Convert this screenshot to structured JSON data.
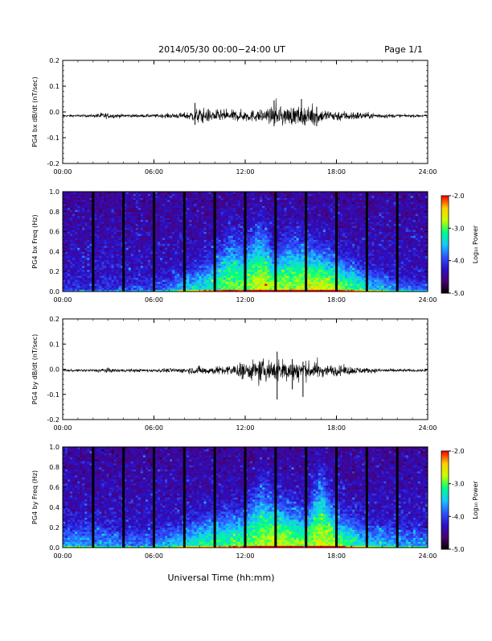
{
  "header": {
    "date_range": "2014/05/30  00:00−24:00 UT",
    "page": "Page 1/1"
  },
  "footer": {
    "xlabel": "Universal Time (hh:mm)"
  },
  "colorbar": {
    "label": "Log₁₀ Power",
    "ticks": [
      "-2.0",
      "-3.0",
      "-4.0",
      "-5.0"
    ],
    "range": [
      -5.0,
      -2.0
    ],
    "colormap": [
      "#000000",
      "#4b006e",
      "#2a10c8",
      "#2e54ff",
      "#18c8ff",
      "#00ff84",
      "#c6ff00",
      "#ffd000",
      "#ff0000"
    ]
  },
  "chart_data": [
    {
      "type": "line",
      "ylabel": "PG4 bx dB/dt (nT/sec)",
      "xlim": [
        "00:00",
        "24:00"
      ],
      "ylim": [
        -0.2,
        0.2
      ],
      "x_ticks": [
        "00:00",
        "06:00",
        "12:00",
        "18:00",
        "24:00"
      ],
      "y_ticks": [
        "0.2",
        "0.1",
        "0.0",
        "-0.1",
        "-0.2"
      ],
      "baseline": -0.015,
      "envelope": {
        "hour": [
          0,
          2,
          2.5,
          4,
          6,
          8,
          9,
          10,
          11,
          12,
          13,
          14,
          15,
          16,
          17,
          18,
          19,
          20,
          22,
          24
        ],
        "amp": [
          0.004,
          0.005,
          0.012,
          0.006,
          0.006,
          0.012,
          0.03,
          0.022,
          0.02,
          0.022,
          0.022,
          0.03,
          0.035,
          0.032,
          0.025,
          0.02,
          0.018,
          0.012,
          0.006,
          0.004
        ]
      },
      "spikes": [
        {
          "hour": 8.7,
          "min": -0.05,
          "max": 0.035
        },
        {
          "hour": 13.9,
          "min": -0.055,
          "max": 0.045
        },
        {
          "hour": 15.7,
          "min": -0.04,
          "max": 0.05
        },
        {
          "hour": 16.7,
          "min": -0.055,
          "max": 0.02
        }
      ]
    },
    {
      "type": "heatmap",
      "ylabel": "PG4 bx Freq (Hz)",
      "xlim": [
        "00:00",
        "24:00"
      ],
      "ylim": [
        0.0,
        1.0
      ],
      "x_ticks": [
        "00:00",
        "06:00",
        "12:00",
        "18:00",
        "24:00"
      ],
      "y_ticks": [
        "1.0",
        "0.8",
        "0.6",
        "0.4",
        "0.2",
        "0.0"
      ],
      "data_gaps_hour": [
        2,
        4,
        6,
        8,
        10,
        12,
        14,
        16,
        18,
        20,
        22
      ],
      "activity": {
        "hour": [
          0,
          6,
          8,
          9,
          10,
          11,
          12,
          13,
          14,
          15,
          16,
          17,
          18,
          20,
          22,
          24
        ],
        "strength": [
          0.1,
          0.15,
          0.45,
          0.55,
          0.65,
          0.8,
          0.8,
          0.95,
          0.9,
          0.8,
          0.9,
          0.95,
          0.85,
          0.55,
          0.3,
          0.2
        ],
        "height_hz": [
          0.08,
          0.1,
          0.15,
          0.2,
          0.3,
          0.45,
          0.4,
          0.55,
          0.3,
          0.45,
          0.4,
          0.35,
          0.3,
          0.2,
          0.12,
          0.08
        ]
      }
    },
    {
      "type": "line",
      "ylabel": "PG4 by dB/dt (nT/sec)",
      "xlim": [
        "00:00",
        "24:00"
      ],
      "ylim": [
        -0.2,
        0.2
      ],
      "x_ticks": [
        "00:00",
        "06:00",
        "12:00",
        "18:00",
        "24:00"
      ],
      "y_ticks": [
        "0.2",
        "0.1",
        "0.0",
        "-0.1",
        "-0.2"
      ],
      "baseline": -0.005,
      "envelope": {
        "hour": [
          0,
          2,
          2.5,
          4,
          6,
          8,
          9,
          10,
          11,
          12,
          13,
          14,
          15,
          16,
          17,
          18,
          19,
          20,
          22,
          24
        ],
        "amp": [
          0.004,
          0.005,
          0.01,
          0.006,
          0.006,
          0.01,
          0.016,
          0.015,
          0.02,
          0.03,
          0.04,
          0.045,
          0.042,
          0.035,
          0.025,
          0.02,
          0.015,
          0.01,
          0.006,
          0.004
        ]
      },
      "spikes": [
        {
          "hour": 11.8,
          "min": -0.04,
          "max": 0.02
        },
        {
          "hour": 14.1,
          "min": -0.12,
          "max": 0.07
        },
        {
          "hour": 15.1,
          "min": -0.08,
          "max": 0.04
        },
        {
          "hour": 15.8,
          "min": -0.11,
          "max": 0.03
        }
      ]
    },
    {
      "type": "heatmap",
      "ylabel": "PG4 by Freq (Hz)",
      "xlim": [
        "00:00",
        "24:00"
      ],
      "ylim": [
        0.0,
        1.0
      ],
      "x_ticks": [
        "00:00",
        "06:00",
        "12:00",
        "18:00",
        "24:00"
      ],
      "y_ticks": [
        "1.0",
        "0.8",
        "0.6",
        "0.4",
        "0.2",
        "0.0"
      ],
      "data_gaps_hour": [
        2,
        4,
        6,
        8,
        10,
        12,
        14,
        16,
        18,
        20,
        22
      ],
      "activity": {
        "hour": [
          0,
          2,
          4,
          6,
          8,
          9,
          10,
          11,
          12,
          13,
          14,
          15,
          16,
          17,
          18,
          20,
          22,
          24
        ],
        "strength": [
          0.35,
          0.35,
          0.3,
          0.3,
          0.5,
          0.6,
          0.65,
          0.7,
          0.75,
          0.85,
          0.95,
          0.85,
          0.8,
          0.95,
          0.8,
          0.5,
          0.35,
          0.3
        ],
        "height_hz": [
          0.2,
          0.2,
          0.15,
          0.15,
          0.2,
          0.25,
          0.28,
          0.3,
          0.3,
          0.5,
          0.4,
          0.35,
          0.3,
          0.6,
          0.3,
          0.2,
          0.2,
          0.15
        ]
      }
    }
  ]
}
